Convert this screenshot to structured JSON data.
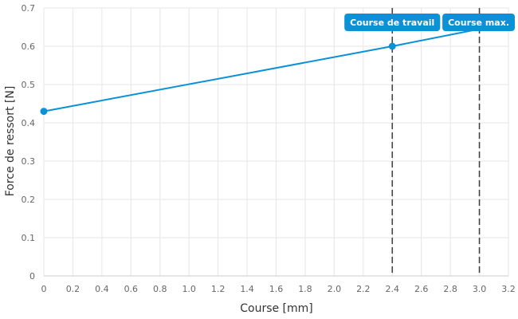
{
  "colors": {
    "series": "#0b91d6",
    "marker_line": "#444444",
    "marker_box": "#0b91d6",
    "grid": "#e6e6e6",
    "axis": "#cccccc"
  },
  "chart_data": {
    "type": "line",
    "xlabel": "Course [mm]",
    "ylabel": "Force de ressort [N]",
    "xlim": [
      0,
      3.2
    ],
    "ylim": [
      0,
      0.7
    ],
    "x_ticks": [
      "0",
      "0.2",
      "0.4",
      "0.6",
      "0.8",
      "1.0",
      "1.2",
      "1.4",
      "1.6",
      "1.8",
      "2.0",
      "2.2",
      "2.4",
      "2.6",
      "2.8",
      "3.0",
      "3.2"
    ],
    "y_ticks": [
      "0",
      "0.1",
      "0.2",
      "0.3",
      "0.4",
      "0.5",
      "0.6",
      "0.7"
    ],
    "grid": true,
    "series": [
      {
        "x": [
          0,
          2.4,
          3.0
        ],
        "y": [
          0.43,
          0.6,
          0.645
        ]
      }
    ],
    "points": [
      {
        "x": 0,
        "y": 0.43
      },
      {
        "x": 2.4,
        "y": 0.6
      }
    ],
    "markers": [
      {
        "x": 2.4,
        "label": "Course de travail"
      },
      {
        "x": 3.0,
        "label": "Course max."
      }
    ]
  }
}
